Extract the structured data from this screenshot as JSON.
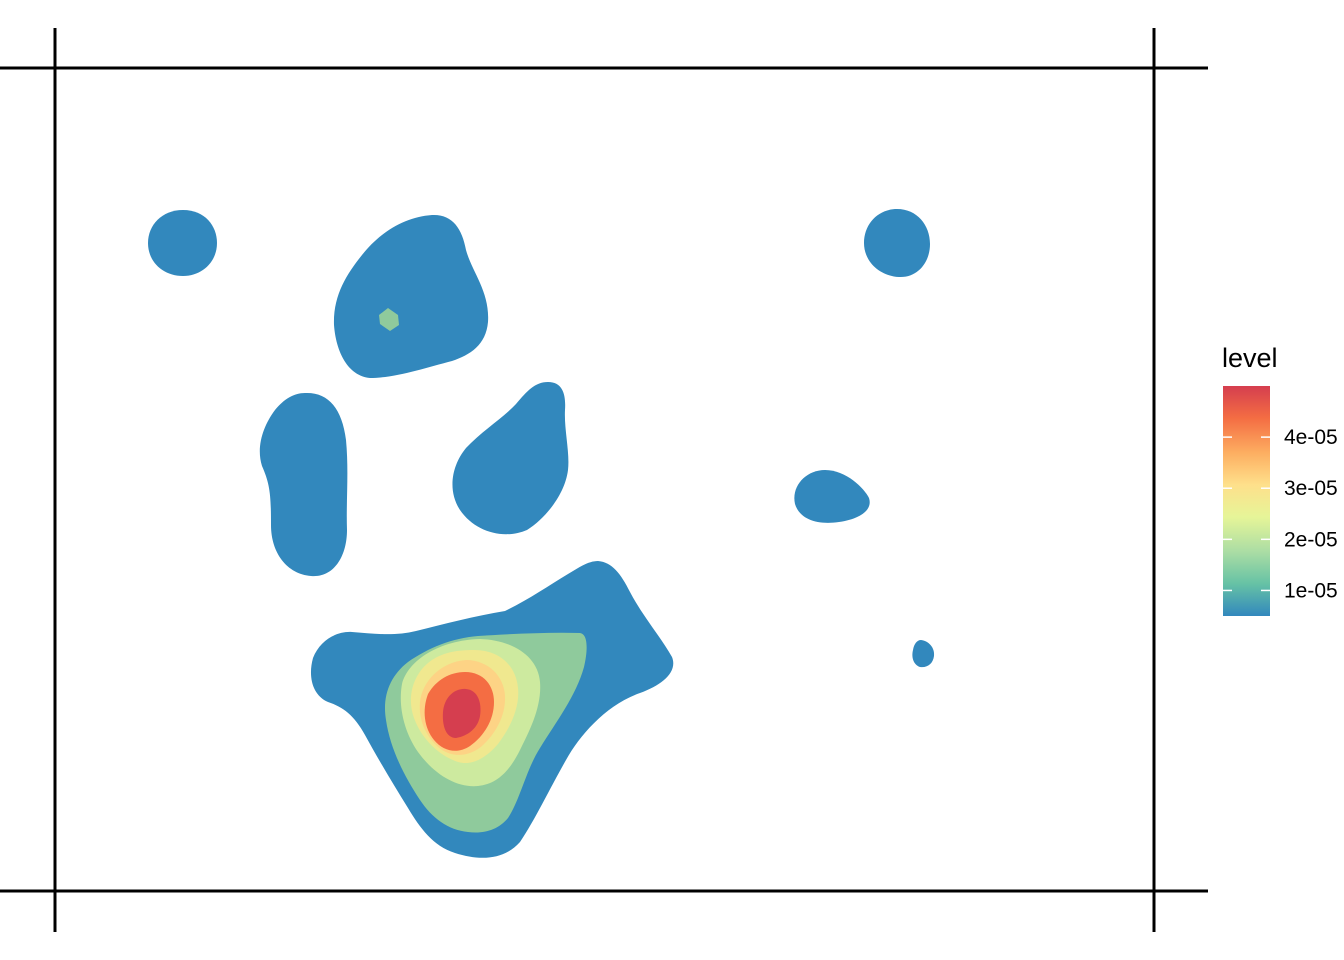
{
  "chart_data": {
    "type": "filled-contour",
    "legend": {
      "title": "level",
      "position": "right",
      "ticks": [
        {
          "value": 1e-05,
          "label": "1e-05"
        },
        {
          "value": 2e-05,
          "label": "2e-05"
        },
        {
          "value": 3e-05,
          "label": "3e-05"
        },
        {
          "value": 4e-05,
          "label": "4e-05"
        }
      ],
      "range": [
        5e-06,
        5e-05
      ]
    },
    "levels": [
      {
        "level": 5e-06,
        "color": "#3288bd"
      },
      {
        "level": 1e-05,
        "color": "#66c2a5"
      },
      {
        "level": 1.5e-05,
        "color": "#8fca9c"
      },
      {
        "level": 2e-05,
        "color": "#cdea9f"
      },
      {
        "level": 2.5e-05,
        "color": "#f0e88f"
      },
      {
        "level": 3e-05,
        "color": "#fdd385"
      },
      {
        "level": 3.5e-05,
        "color": "#fdae61"
      },
      {
        "level": 4e-05,
        "color": "#f46d43"
      },
      {
        "level": 4.5e-05,
        "color": "#d53e4f"
      }
    ],
    "peak_level": 4.6e-05,
    "gradient_colors": [
      "#3288bd",
      "#66c2a5",
      "#abdda4",
      "#e6f598",
      "#fee08b",
      "#fdae61",
      "#f46d43",
      "#d53e4f"
    ],
    "axes": {
      "labels": "none",
      "grid": false
    }
  }
}
